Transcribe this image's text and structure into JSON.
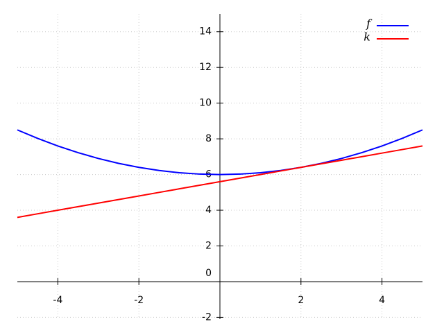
{
  "chart_data": {
    "type": "line",
    "x": [
      -5,
      -4.5,
      -4,
      -3.5,
      -3,
      -2.5,
      -2,
      -1.5,
      -1,
      -0.5,
      0,
      0.5,
      1,
      1.5,
      2,
      2.5,
      3,
      3.5,
      4,
      4.5,
      5
    ],
    "series": [
      {
        "name": "f",
        "color": "#0000ff",
        "values": [
          8.5,
          8.025,
          7.6,
          7.225,
          6.9,
          6.625,
          6.4,
          6.225,
          6.1,
          6.025,
          6,
          6.025,
          6.1,
          6.225,
          6.4,
          6.625,
          6.9,
          7.225,
          7.6,
          8.025,
          8.5
        ]
      },
      {
        "name": "k",
        "color": "#ff0000",
        "values": [
          3.6,
          3.8,
          4.0,
          4.2,
          4.4,
          4.6,
          4.8,
          5.0,
          5.2,
          5.4,
          5.6,
          5.8,
          6.0,
          6.2,
          6.4,
          6.6,
          6.8,
          7.0,
          7.2,
          7.4,
          7.6
        ]
      }
    ],
    "xlim": [
      -5,
      5
    ],
    "ylim": [
      -2.1,
      15
    ],
    "xticks": [
      -4,
      -2,
      2,
      4
    ],
    "yticks": [
      -2,
      0,
      2,
      4,
      6,
      8,
      10,
      12,
      14
    ],
    "grid": true,
    "legend": "upper right"
  }
}
